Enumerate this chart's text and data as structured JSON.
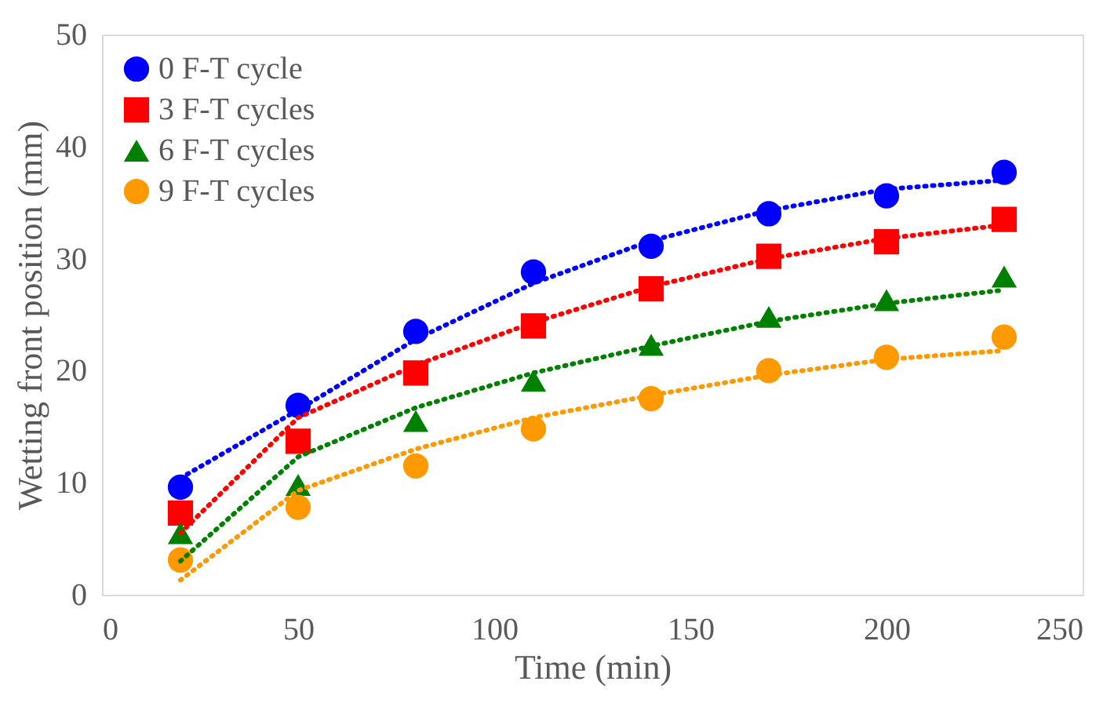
{
  "chart_data": {
    "type": "scatter",
    "xlabel": "Time (min)",
    "ylabel": "Wetting front position (mm)",
    "x": [
      20,
      50,
      80,
      110,
      140,
      170,
      200,
      230
    ],
    "xlim": [
      0,
      250
    ],
    "xticks": [
      0,
      50,
      100,
      150,
      200,
      250
    ],
    "ylim": [
      0,
      50
    ],
    "yticks": [
      0,
      10,
      20,
      30,
      40,
      50
    ],
    "grid": false,
    "legend": "top left",
    "series": [
      {
        "name": "0 F-T cycle",
        "color": "#0000ff",
        "marker": "circle",
        "values": [
          9.6,
          16.9,
          23.5,
          28.8,
          31.1,
          34.0,
          35.6,
          37.7
        ]
      },
      {
        "name": "3 F-T cycles",
        "color": "#ff0000",
        "marker": "square",
        "values": [
          7.3,
          13.7,
          19.8,
          24.0,
          27.3,
          30.2,
          31.5,
          33.5
        ]
      },
      {
        "name": "6 F-T cycles",
        "color": "#008000",
        "marker": "triangle",
        "values": [
          5.5,
          9.8,
          15.5,
          19.1,
          22.3,
          24.8,
          26.3,
          28.4
        ]
      },
      {
        "name": "9 F-T cycles",
        "color": "#ff9900",
        "marker": "circle",
        "values": [
          3.1,
          7.8,
          11.5,
          14.8,
          17.5,
          20.0,
          21.2,
          23.0
        ]
      },
      {
        "type": "line",
        "color": "#0000ff",
        "line_style": "dotted",
        "marker": "none",
        "x": [
          20,
          50,
          80,
          110,
          140,
          170,
          200,
          230
        ],
        "values": [
          10.4,
          16.5,
          22.8,
          27.8,
          31.6,
          34.3,
          36.2,
          37.0
        ]
      },
      {
        "type": "line",
        "color": "#ff0000",
        "line_style": "dotted",
        "marker": "none",
        "x": [
          20,
          50,
          80,
          110,
          140,
          170,
          200,
          230
        ],
        "values": [
          5.5,
          15.8,
          20.5,
          24.3,
          27.5,
          30.0,
          31.8,
          33.0
        ]
      },
      {
        "type": "line",
        "color": "#008000",
        "line_style": "dotted",
        "marker": "none",
        "x": [
          20,
          50,
          80,
          110,
          140,
          170,
          200,
          230
        ],
        "values": [
          3.0,
          12.3,
          16.7,
          19.8,
          22.2,
          24.4,
          26.0,
          27.2
        ]
      },
      {
        "type": "line",
        "color": "#ff9900",
        "line_style": "dotted",
        "marker": "none",
        "x": [
          20,
          50,
          80,
          110,
          140,
          170,
          200,
          230
        ],
        "values": [
          1.3,
          9.3,
          13.0,
          15.8,
          17.8,
          19.6,
          21.0,
          21.8
        ]
      }
    ]
  }
}
